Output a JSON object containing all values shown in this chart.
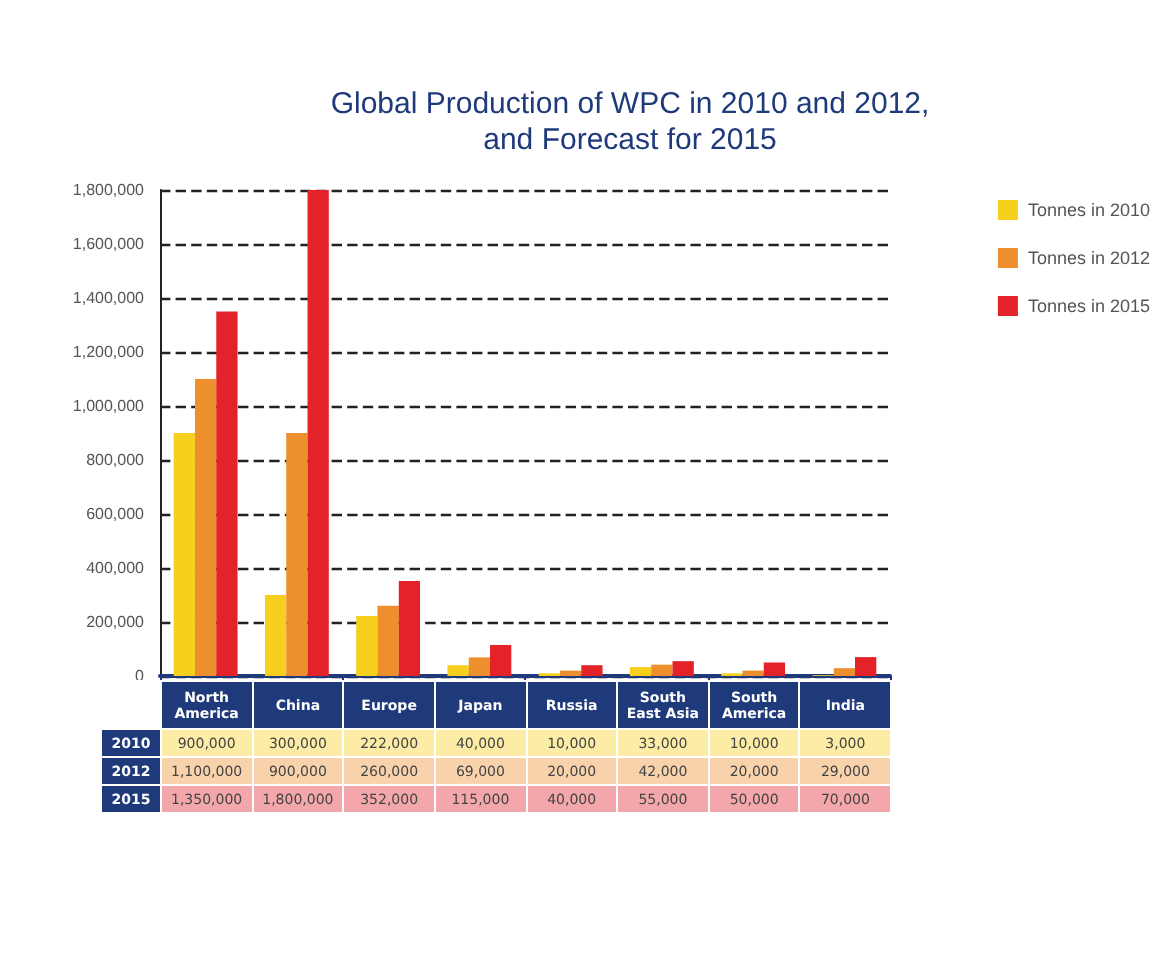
{
  "chart_data": {
    "type": "bar",
    "title": "Global Production of WPC in 2010 and 2012,\nand Forecast for 2015",
    "categories": [
      "North\nAmerica",
      "China",
      "Europe",
      "Japan",
      "Russia",
      "South\nEast Asia",
      "South\nAmerica",
      "India"
    ],
    "series": [
      {
        "name": "Tonnes in 2010",
        "color": "#f7cf1d",
        "values": [
          900000,
          300000,
          222000,
          40000,
          10000,
          33000,
          10000,
          3000
        ],
        "value_labels": [
          "900,000",
          "300,000",
          "222,000",
          "40,000",
          "10,000",
          "33,000",
          "10,000",
          "3,000"
        ]
      },
      {
        "name": "Tonnes in 2012",
        "color": "#ee8f2e",
        "values": [
          1100000,
          900000,
          260000,
          69000,
          20000,
          42000,
          20000,
          29000
        ],
        "value_labels": [
          "1,100,000",
          "900,000",
          "260,000",
          "69,000",
          "20,000",
          "42,000",
          "20,000",
          "29,000"
        ]
      },
      {
        "name": "Tonnes in 2015",
        "color": "#e3222a",
        "values": [
          1350000,
          1800000,
          352000,
          115000,
          40000,
          55000,
          50000,
          70000
        ],
        "value_labels": [
          "1,350,000",
          "1,800,000",
          "352,000",
          "115,000",
          "40,000",
          "55,000",
          "50,000",
          "70,000"
        ]
      }
    ],
    "annotations": [
      "2010",
      "2012",
      "2015"
    ],
    "ylim": [
      0,
      1800000
    ],
    "yticks": [
      0,
      {
        "value": 200000,
        "label": "200,000"
      },
      {
        "value": 400000,
        "label": "400,000"
      },
      {
        "value": 600000,
        "label": "600,000"
      },
      {
        "value": 800000,
        "label": "800,000"
      },
      {
        "value": 1000000,
        "label": "1,000,000"
      },
      {
        "value": 1200000,
        "label": "1,200,000"
      },
      {
        "value": 1400000,
        "label": "1,400,000"
      },
      {
        "value": 1600000,
        "label": "1,600,000"
      },
      {
        "value": 1800000,
        "label": "1,800,000"
      }
    ],
    "grid": "y",
    "legend": "top right"
  }
}
